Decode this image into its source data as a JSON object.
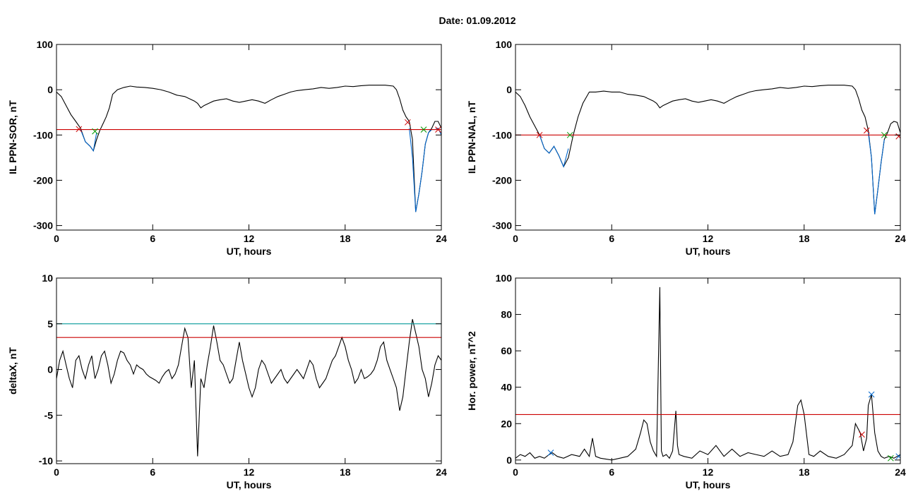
{
  "figure": {
    "title": "Date:  01.09.2012"
  },
  "chart_data": [
    {
      "type": "line",
      "id": "ppn-sor",
      "xlabel": "UT, hours",
      "ylabel": "IL PPN-SOR, nT",
      "xlim": [
        0,
        24
      ],
      "ylim": [
        -310,
        100
      ],
      "xticks": [
        0,
        6,
        12,
        18,
        24
      ],
      "yticks": [
        100,
        0,
        -100,
        -200,
        -300
      ],
      "series": [
        {
          "color": "#000000",
          "x": [
            0,
            0.3,
            0.6,
            0.9,
            1.2,
            1.5,
            1.8,
            2.1,
            2.3,
            2.5,
            2.7,
            2.9,
            3.1,
            3.3,
            3.5,
            3.8,
            4.2,
            4.6,
            5,
            5.5,
            6,
            6.5,
            7,
            7.5,
            8,
            8.3,
            8.6,
            8.8,
            9,
            9.2,
            9.5,
            9.8,
            10.2,
            10.6,
            11,
            11.4,
            11.8,
            12.2,
            12.6,
            13,
            13.4,
            13.8,
            14.2,
            14.6,
            15,
            15.5,
            16,
            16.5,
            17,
            17.5,
            18,
            18.5,
            19,
            19.5,
            20,
            20.5,
            21,
            21.2,
            21.4,
            21.6,
            21.8,
            22,
            22.2,
            22.4,
            22.6,
            22.8,
            23,
            23.2,
            23.4,
            23.6,
            23.8,
            24
          ],
          "y": [
            -5,
            -15,
            -35,
            -55,
            -70,
            -85,
            -115,
            -125,
            -135,
            -110,
            -90,
            -75,
            -60,
            -40,
            -10,
            0,
            5,
            8,
            6,
            5,
            3,
            0,
            -5,
            -12,
            -15,
            -20,
            -25,
            -30,
            -40,
            -35,
            -30,
            -25,
            -22,
            -20,
            -25,
            -28,
            -25,
            -22,
            -25,
            -30,
            -22,
            -15,
            -10,
            -5,
            -2,
            0,
            2,
            5,
            3,
            5,
            8,
            7,
            9,
            10,
            10,
            10,
            8,
            0,
            -20,
            -45,
            -60,
            -70,
            -110,
            -270,
            -230,
            -180,
            -120,
            -95,
            -85,
            -70,
            -70,
            -85
          ]
        },
        {
          "color": "#0066cc",
          "x": [
            1.5,
            1.8,
            2.1,
            2.3,
            2.5
          ],
          "y": [
            -88,
            -115,
            -125,
            -135,
            -95
          ]
        },
        {
          "color": "#0066cc",
          "x": [
            22,
            22.2,
            22.4,
            22.6,
            22.8,
            23,
            23.2,
            23.4,
            23.6,
            23.8,
            24
          ],
          "y": [
            -85,
            -150,
            -270,
            -230,
            -180,
            -120,
            -95,
            -88,
            -88,
            -85,
            -100
          ]
        },
        {
          "color": "#cc0000",
          "x": [
            0,
            24
          ],
          "y": [
            -88,
            -88
          ]
        }
      ],
      "markers": [
        {
          "x": 1.4,
          "y": -87,
          "color": "#cc0000"
        },
        {
          "x": 2.4,
          "y": -92,
          "color": "#009900"
        },
        {
          "x": 21.9,
          "y": -72,
          "color": "#cc0000"
        },
        {
          "x": 22.9,
          "y": -88,
          "color": "#009900"
        },
        {
          "x": 23.8,
          "y": -88,
          "color": "#cc0000"
        }
      ]
    },
    {
      "type": "line",
      "id": "ppn-nal",
      "xlabel": "UT, hours",
      "ylabel": "IL PPN-NAL, nT",
      "xlim": [
        0,
        24
      ],
      "ylim": [
        -310,
        100
      ],
      "xticks": [
        0,
        6,
        12,
        18,
        24
      ],
      "yticks": [
        100,
        0,
        -100,
        -200,
        -300
      ],
      "series": [
        {
          "color": "#000000",
          "x": [
            0,
            0.3,
            0.6,
            0.9,
            1.2,
            1.5,
            1.8,
            2.1,
            2.4,
            2.7,
            3,
            3.3,
            3.6,
            3.9,
            4.2,
            4.6,
            5,
            5.5,
            6,
            6.5,
            7,
            7.5,
            8,
            8.3,
            8.6,
            8.8,
            9,
            9.2,
            9.5,
            9.8,
            10.2,
            10.6,
            11,
            11.4,
            11.8,
            12.2,
            12.6,
            13,
            13.4,
            13.8,
            14.2,
            14.6,
            15,
            15.5,
            16,
            16.5,
            17,
            17.5,
            18,
            18.5,
            19,
            19.5,
            20,
            20.5,
            21,
            21.2,
            21.4,
            21.6,
            21.8,
            22,
            22.2,
            22.4,
            22.6,
            22.8,
            23,
            23.2,
            23.4,
            23.6,
            23.8,
            24
          ],
          "y": [
            -5,
            -15,
            -35,
            -60,
            -80,
            -100,
            -130,
            -140,
            -125,
            -145,
            -170,
            -150,
            -100,
            -60,
            -30,
            -5,
            -5,
            -3,
            -5,
            -5,
            -10,
            -12,
            -15,
            -20,
            -25,
            -30,
            -40,
            -35,
            -30,
            -25,
            -22,
            -20,
            -25,
            -28,
            -25,
            -22,
            -25,
            -30,
            -22,
            -15,
            -10,
            -5,
            -2,
            0,
            2,
            5,
            3,
            5,
            8,
            7,
            9,
            10,
            10,
            10,
            8,
            0,
            -20,
            -45,
            -60,
            -90,
            -150,
            -275,
            -220,
            -160,
            -110,
            -95,
            -75,
            -70,
            -72,
            -95
          ]
        },
        {
          "color": "#0066cc",
          "x": [
            1.5,
            1.8,
            2.1,
            2.4,
            2.7,
            3,
            3.3
          ],
          "y": [
            -100,
            -130,
            -140,
            -125,
            -145,
            -170,
            -130
          ]
        },
        {
          "color": "#0066cc",
          "x": [
            22,
            22.2,
            22.4,
            22.6,
            22.8,
            23
          ],
          "y": [
            -95,
            -150,
            -275,
            -220,
            -160,
            -110
          ]
        },
        {
          "color": "#cc0000",
          "x": [
            0,
            24
          ],
          "y": [
            -100,
            -100
          ]
        }
      ],
      "markers": [
        {
          "x": 1.5,
          "y": -100,
          "color": "#cc0000"
        },
        {
          "x": 3.4,
          "y": -100,
          "color": "#009900"
        },
        {
          "x": 21.9,
          "y": -90,
          "color": "#cc0000"
        },
        {
          "x": 23,
          "y": -100,
          "color": "#009900"
        },
        {
          "x": 23.9,
          "y": -103,
          "color": "#cc0000"
        }
      ]
    },
    {
      "type": "line",
      "id": "deltax",
      "xlabel": "UT, hours",
      "ylabel": "deltaX, nT",
      "xlim": [
        0,
        24
      ],
      "ylim": [
        -10.3,
        10
      ],
      "xticks": [
        0,
        6,
        12,
        18,
        24
      ],
      "yticks": [
        10,
        5,
        0,
        -5,
        -10
      ],
      "series": [
        {
          "color": "#000000",
          "x": [
            0,
            0.2,
            0.4,
            0.6,
            0.8,
            1,
            1.2,
            1.4,
            1.6,
            1.8,
            2,
            2.2,
            2.4,
            2.6,
            2.8,
            3,
            3.2,
            3.4,
            3.6,
            3.8,
            4,
            4.2,
            4.4,
            4.6,
            4.8,
            5,
            5.2,
            5.4,
            5.6,
            5.8,
            6,
            6.2,
            6.4,
            6.6,
            6.8,
            7,
            7.2,
            7.4,
            7.6,
            7.8,
            8,
            8.2,
            8.4,
            8.6,
            8.8,
            9,
            9.2,
            9.4,
            9.6,
            9.8,
            10,
            10.2,
            10.4,
            10.6,
            10.8,
            11,
            11.2,
            11.4,
            11.6,
            11.8,
            12,
            12.2,
            12.4,
            12.6,
            12.8,
            13,
            13.2,
            13.4,
            13.6,
            13.8,
            14,
            14.2,
            14.4,
            14.6,
            14.8,
            15,
            15.2,
            15.4,
            15.6,
            15.8,
            16,
            16.2,
            16.4,
            16.6,
            16.8,
            17,
            17.2,
            17.4,
            17.6,
            17.8,
            18,
            18.2,
            18.4,
            18.6,
            18.8,
            19,
            19.2,
            19.4,
            19.6,
            19.8,
            20,
            20.2,
            20.4,
            20.6,
            20.8,
            21,
            21.2,
            21.4,
            21.6,
            21.8,
            22,
            22.2,
            22.4,
            22.6,
            22.8,
            23,
            23.2,
            23.4,
            23.6,
            23.8,
            24
          ],
          "y": [
            -1,
            1,
            2,
            0.5,
            -1,
            -2,
            1,
            1.5,
            0,
            -1,
            0.5,
            1.5,
            -1,
            0,
            1.5,
            2,
            0.5,
            -1.5,
            -0.5,
            1,
            2,
            1.8,
            1,
            0.5,
            -0.5,
            0.5,
            0.2,
            0,
            -0.5,
            -0.8,
            -1,
            -1.2,
            -1.5,
            -0.8,
            -0.3,
            0,
            -1,
            -0.5,
            0.5,
            2.5,
            4.5,
            3.5,
            -2,
            1,
            -9.5,
            -1,
            -2,
            0.5,
            2.5,
            4.8,
            3,
            1,
            0.5,
            -0.5,
            -1.5,
            -1,
            1,
            3,
            1,
            -0.5,
            -2,
            -3,
            -2,
            0,
            1,
            0.5,
            -0.5,
            -1.5,
            -1,
            -0.5,
            0,
            -1,
            -1.5,
            -1,
            -0.5,
            0,
            -0.5,
            -1,
            0,
            1,
            0.5,
            -1,
            -2,
            -1.5,
            -1,
            0,
            1,
            1.5,
            2.5,
            3.5,
            2.5,
            1,
            0,
            -1.5,
            -1,
            0,
            -1,
            -0.8,
            -0.5,
            0,
            1,
            2.5,
            3,
            1,
            0,
            -1,
            -2,
            -4.5,
            -3,
            0,
            3,
            5.5,
            4,
            2.5,
            0,
            -1,
            -3,
            -1.5,
            0.5,
            1.5,
            1
          ]
        },
        {
          "color": "#009999",
          "x": [
            0,
            24
          ],
          "y": [
            5,
            5
          ]
        },
        {
          "color": "#cc0000",
          "x": [
            0,
            24
          ],
          "y": [
            3.5,
            3.5
          ]
        }
      ],
      "markers": []
    },
    {
      "type": "line",
      "id": "hor-power",
      "xlabel": "UT, hours",
      "ylabel": "Hor. power, nT^2",
      "xlim": [
        0,
        24
      ],
      "ylim": [
        -2,
        100
      ],
      "xticks": [
        0,
        6,
        12,
        18,
        24
      ],
      "yticks": [
        100,
        80,
        60,
        40,
        20,
        0
      ],
      "series": [
        {
          "color": "#000000",
          "x": [
            0,
            0.3,
            0.6,
            0.9,
            1.2,
            1.5,
            1.8,
            2.1,
            2.3,
            2.6,
            3,
            3.5,
            4,
            4.3,
            4.6,
            4.8,
            5,
            5.3,
            6,
            6.5,
            7,
            7.5,
            7.8,
            8,
            8.2,
            8.4,
            8.6,
            8.8,
            9,
            9.1,
            9.2,
            9.4,
            9.6,
            9.8,
            10,
            10.1,
            10.2,
            10.5,
            11,
            11.5,
            12,
            12.5,
            13,
            13.5,
            14,
            14.5,
            15,
            15.5,
            16,
            16.5,
            17,
            17.3,
            17.6,
            17.8,
            18,
            18.3,
            18.6,
            19,
            19.5,
            20,
            20.5,
            21,
            21.2,
            21.5,
            21.7,
            21.9,
            22,
            22.2,
            22.4,
            22.6,
            22.8,
            23,
            23.3,
            23.6,
            24
          ],
          "y": [
            1,
            3,
            2,
            4,
            1,
            2,
            1,
            3,
            4,
            2,
            1,
            3,
            2,
            6,
            2,
            12,
            2,
            1,
            0,
            1,
            2,
            6,
            15,
            22,
            20,
            10,
            5,
            2,
            95,
            5,
            2,
            3,
            1,
            5,
            27,
            8,
            3,
            2,
            1,
            5,
            3,
            8,
            2,
            6,
            2,
            4,
            3,
            2,
            5,
            2,
            3,
            10,
            30,
            33,
            25,
            3,
            2,
            5,
            2,
            1,
            3,
            8,
            20,
            15,
            5,
            12,
            30,
            36,
            15,
            5,
            2,
            1,
            2,
            1,
            3
          ]
        },
        {
          "color": "#cc0000",
          "x": [
            0,
            24
          ],
          "y": [
            25,
            25
          ]
        }
      ],
      "markers": [
        {
          "x": 2.2,
          "y": 4,
          "color": "#0066cc"
        },
        {
          "x": 21.6,
          "y": 14,
          "color": "#cc0000"
        },
        {
          "x": 22.2,
          "y": 36,
          "color": "#0066cc"
        },
        {
          "x": 23.4,
          "y": 1,
          "color": "#009900"
        },
        {
          "x": 23.9,
          "y": 2,
          "color": "#0066cc"
        }
      ]
    }
  ]
}
